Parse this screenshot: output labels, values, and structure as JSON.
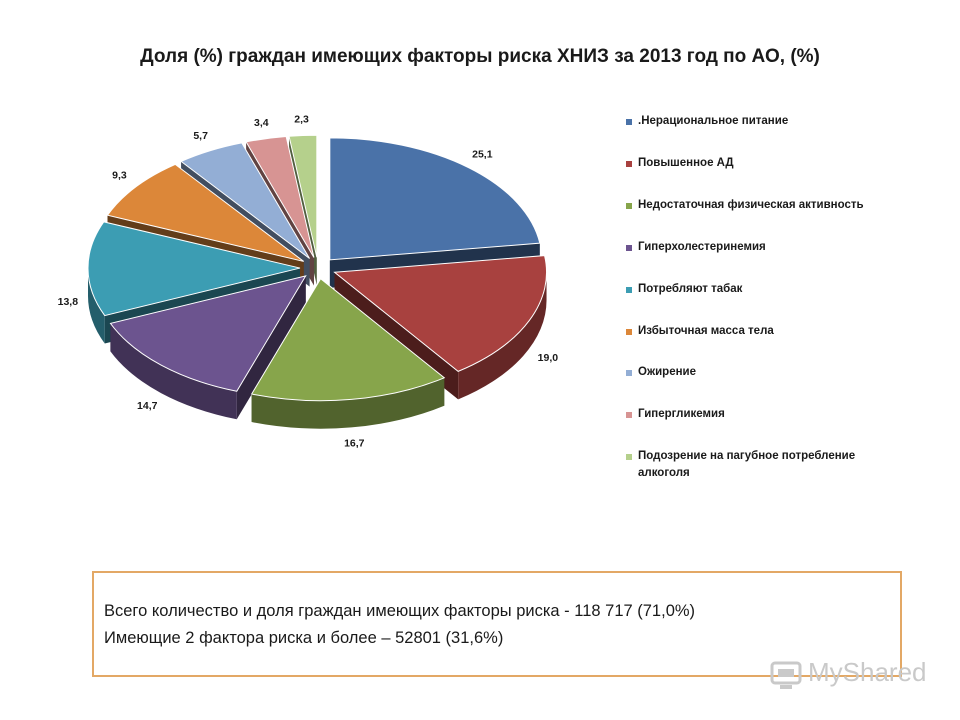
{
  "chart_data": {
    "type": "pie",
    "title": "Доля (%) граждан имеющих факторы риска ХНИЗ за 2013 год по АО, (%)",
    "categories": [
      ".Нерациональное питание",
      "Повышенное АД",
      "Недостаточная физическая активность",
      "Гиперхолестеринемия",
      "Потребляют табак",
      "Избыточная масса тела",
      "Ожирение",
      "Гипергликемия",
      "Подозрение на пагубное потребление алкоголя"
    ],
    "values": [
      25.1,
      19.0,
      16.7,
      14.7,
      13.8,
      9.3,
      5.7,
      3.4,
      2.3
    ],
    "value_labels": [
      "25,1",
      "19,0",
      "16,7",
      "14,7",
      "13,8",
      "9,3",
      "5,7",
      "3,4",
      "2,3"
    ],
    "colors": [
      "#4a72a8",
      "#a8413f",
      "#87a54b",
      "#6c548f",
      "#3c9db3",
      "#dc8739",
      "#93aed5",
      "#d79493",
      "#b5d08c"
    ],
    "style": "3d-exploded",
    "legend_position": "right"
  },
  "legend_labels": [
    ".Нерациональное питание",
    "Повышенное АД",
    "Недостаточная физическая активность",
    "Гиперхолестеринемия",
    "Потребляют табак",
    "Избыточная масса тела",
    "Ожирение",
    "Гипергликемия",
    "Подозрение на пагубное потребление алкоголя"
  ],
  "summary": {
    "line1": "Всего количество и доля граждан имеющих факторы риска - 118 717 (71,0%)",
    "line2": "Имеющие 2 фактора риска  и более – 52801 (31,6%)"
  },
  "watermark": {
    "text": "MyShared",
    "icon": "myshared-logo-icon"
  }
}
